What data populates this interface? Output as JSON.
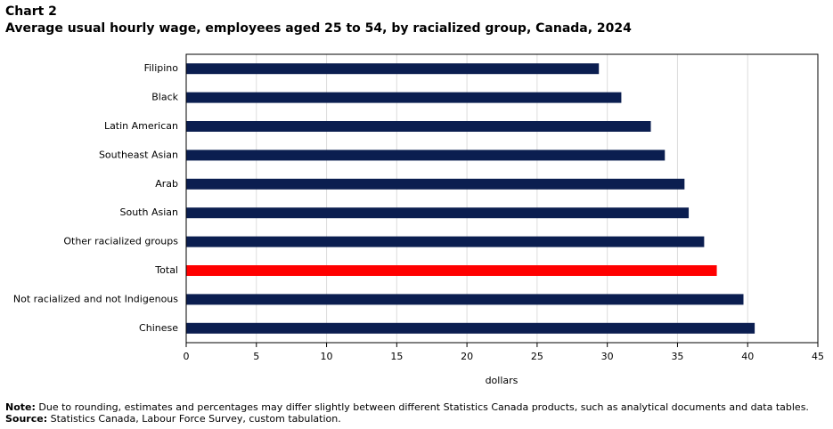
{
  "chart_data": {
    "type": "barh",
    "label": "Chart 2",
    "title": "Average usual hourly wage, employees aged 25 to 54, by racialized group, Canada, 2024",
    "categories": [
      "Filipino",
      "Black",
      "Latin American",
      "Southeast Asian",
      "Arab",
      "South Asian",
      "Other racialized groups",
      "Total",
      "Not racialized and not Indigenous",
      "Chinese"
    ],
    "values": [
      29.4,
      31.0,
      33.1,
      34.1,
      35.5,
      35.8,
      36.9,
      37.8,
      39.7,
      40.5
    ],
    "colors": [
      "#0b1e50",
      "#0b1e50",
      "#0b1e50",
      "#0b1e50",
      "#0b1e50",
      "#0b1e50",
      "#0b1e50",
      "#ff0000",
      "#0b1e50",
      "#0b1e50"
    ],
    "xlabel": "dollars",
    "xlim": [
      0,
      45
    ],
    "xticks": [
      0,
      5,
      10,
      15,
      20,
      25,
      30,
      35,
      40,
      45
    ],
    "grid": true,
    "note_label": "Note:",
    "note": "Due to rounding, estimates and percentages may differ slightly between different Statistics Canada products, such as analytical documents and data tables.",
    "source_label": "Source:",
    "source": "Statistics Canada, Labour Force Survey, custom tabulation."
  }
}
